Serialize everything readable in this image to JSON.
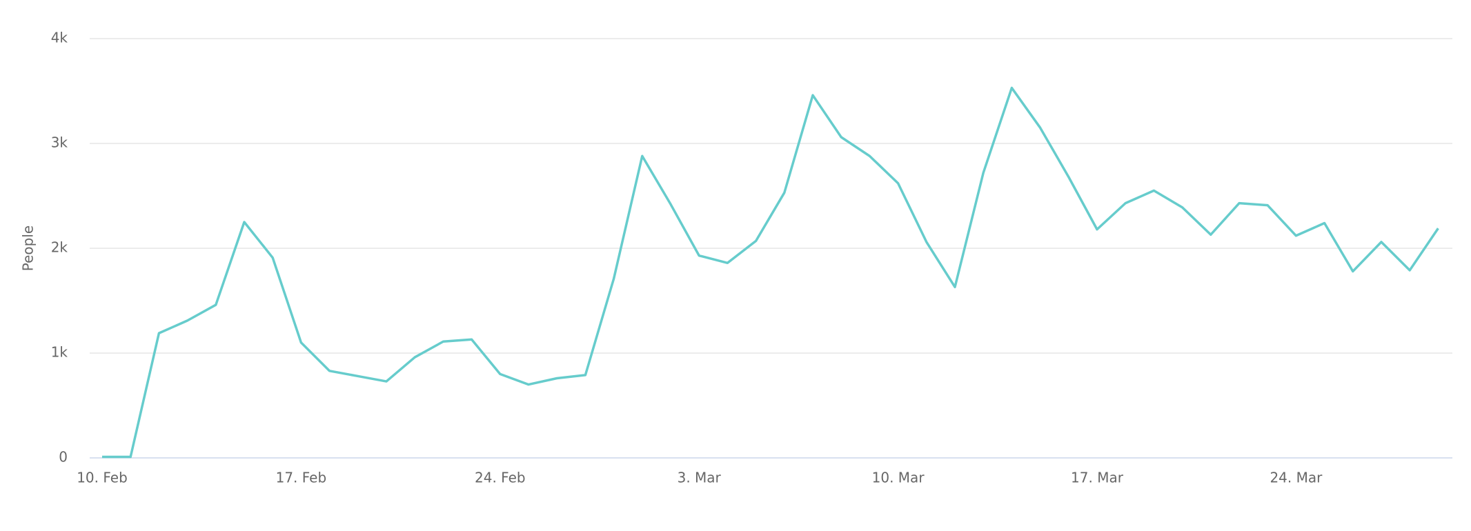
{
  "chart_data": {
    "type": "line",
    "y_label": "People",
    "x": [
      "10. Feb",
      "11. Feb",
      "12. Feb",
      "13. Feb",
      "14. Feb",
      "15. Feb",
      "16. Feb",
      "17. Feb",
      "18. Feb",
      "19. Feb",
      "20. Feb",
      "21. Feb",
      "22. Feb",
      "23. Feb",
      "24. Feb",
      "25. Feb",
      "26. Feb",
      "27. Feb",
      "28. Feb",
      "1. Mar",
      "2. Mar",
      "3. Mar",
      "4. Mar",
      "5. Mar",
      "6. Mar",
      "7. Mar",
      "8. Mar",
      "9. Mar",
      "10. Mar",
      "11. Mar",
      "12. Mar",
      "13. Mar",
      "14. Mar",
      "15. Mar",
      "16. Mar",
      "17. Mar",
      "18. Mar",
      "19. Mar",
      "20. Mar",
      "21. Mar",
      "22. Mar",
      "23. Mar",
      "24. Mar",
      "25. Mar",
      "26. Mar",
      "27. Mar",
      "28. Mar",
      "29. Mar"
    ],
    "series": [
      {
        "name": "People",
        "color": "#66cccc",
        "values": [
          10,
          10,
          1190,
          1310,
          1460,
          2250,
          1910,
          1100,
          830,
          780,
          730,
          960,
          1110,
          1130,
          800,
          700,
          760,
          790,
          1710,
          2880,
          2420,
          1930,
          1860,
          2070,
          2530,
          3460,
          3060,
          2880,
          2620,
          2060,
          1630,
          2720,
          3530,
          3150,
          2680,
          2180,
          2430,
          2550,
          2390,
          2130,
          2430,
          2410,
          2120,
          2240,
          1780,
          2060,
          1790,
          2190
        ]
      }
    ],
    "xticks": [
      "10. Feb",
      "17. Feb",
      "24. Feb",
      "3. Mar",
      "10. Mar",
      "17. Mar",
      "24. Mar"
    ],
    "ylim": [
      0,
      4000
    ],
    "yticks": [
      0,
      {
        "value": 1000,
        "label": "1k"
      },
      {
        "value": 2000,
        "label": "2k"
      },
      {
        "value": 3000,
        "label": "3k"
      },
      {
        "value": 4000,
        "label": "4k"
      }
    ],
    "grid": true
  }
}
